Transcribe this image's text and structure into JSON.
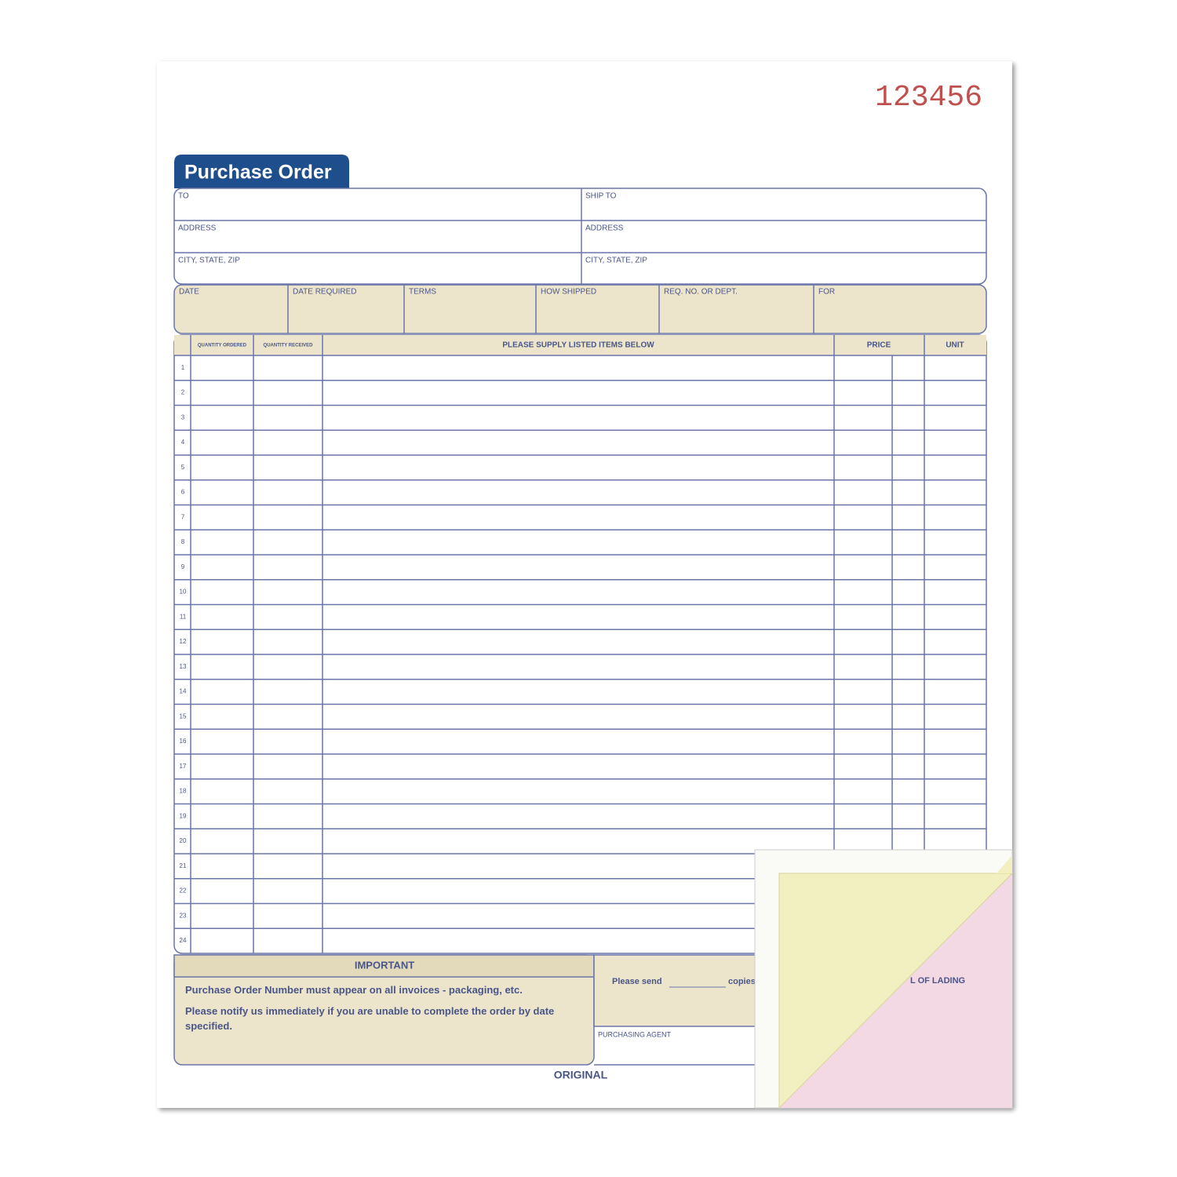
{
  "serial": "123456",
  "header": {
    "title": "Purchase Order"
  },
  "address_fields": {
    "left": [
      "TO",
      "ADDRESS",
      "CITY, STATE, ZIP"
    ],
    "right": [
      "SHIP TO",
      "ADDRESS",
      "CITY, STATE, ZIP"
    ]
  },
  "order_fields": [
    "DATE",
    "DATE REQUIRED",
    "TERMS",
    "HOW SHIPPED",
    "REQ. NO. OR DEPT.",
    "FOR"
  ],
  "table": {
    "columns": [
      "QUANTITY ORDERED",
      "QUANTITY RECEIVED",
      "PLEASE SUPPLY LISTED ITEMS BELOW",
      "PRICE",
      "UNIT"
    ],
    "row_numbers": [
      1,
      2,
      3,
      4,
      5,
      6,
      7,
      8,
      9,
      10,
      11,
      12,
      13,
      14,
      15,
      16,
      17,
      18,
      19,
      20,
      21,
      22,
      23,
      24
    ]
  },
  "important": {
    "title": "IMPORTANT",
    "notes": [
      "Purchase Order Number must appear on all invoices - packaging, etc.",
      "Please notify us immediately if you are unable to complete the order by date specified."
    ]
  },
  "copies": {
    "prefix": "Please send",
    "suffix": "copies"
  },
  "bill_of_lading": "L OF LADING",
  "purchasing_agent": "PURCHASING AGENT",
  "copy_label": "ORIGINAL"
}
